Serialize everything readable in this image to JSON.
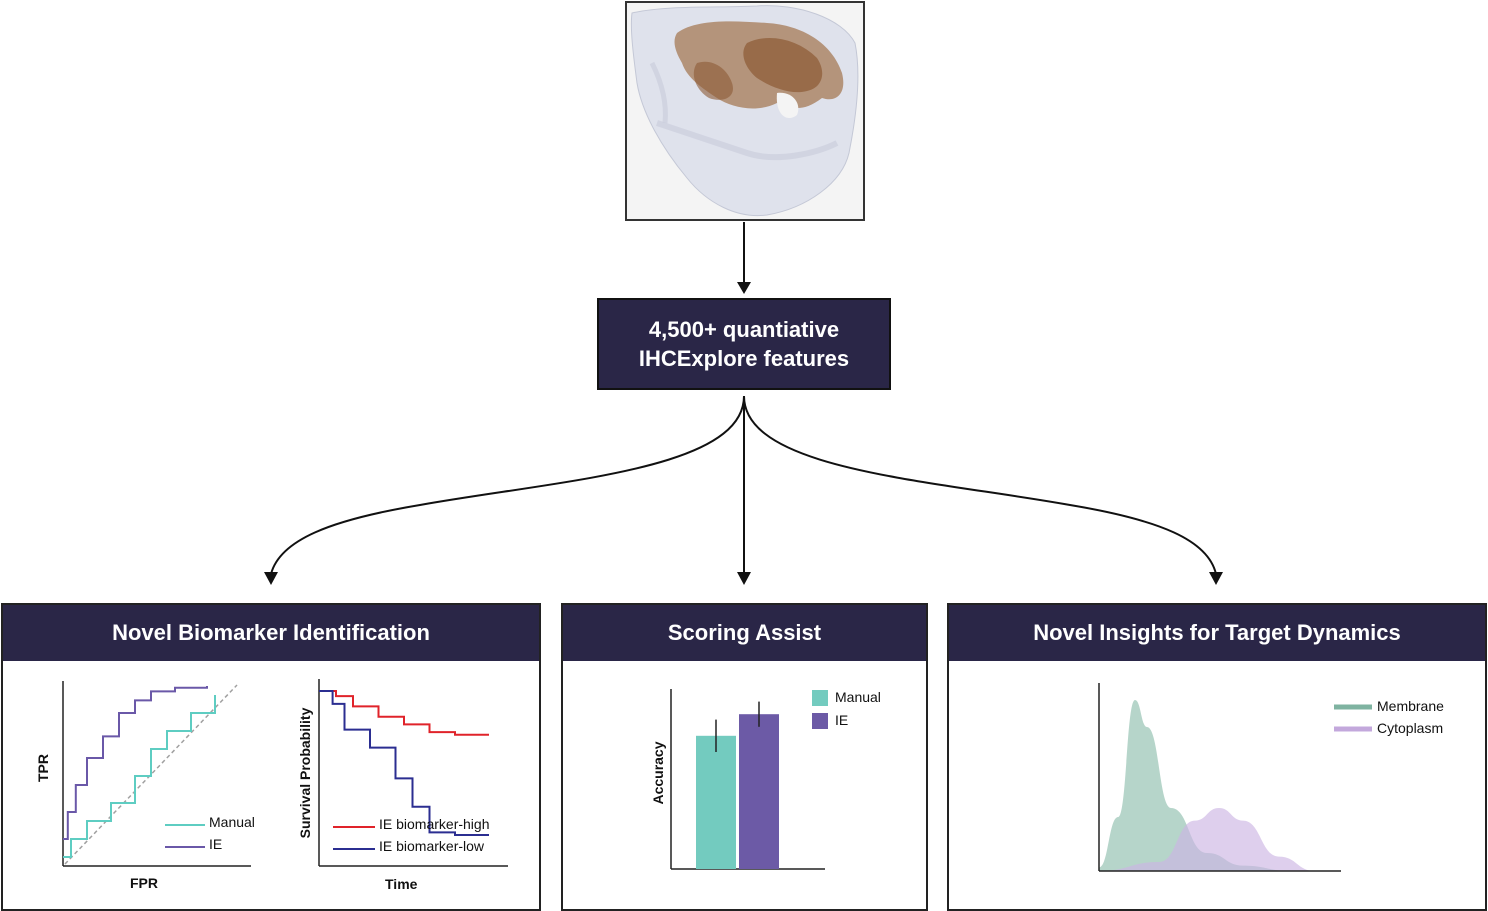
{
  "feature_box": {
    "line1": "4,500+ quantiative",
    "line2": "IHCExplore features"
  },
  "panels": {
    "biomarker": {
      "title": "Novel Biomarker Identification",
      "roc": {
        "ylabel": "TPR",
        "xlabel": "FPR",
        "legend": [
          {
            "name": "Manual",
            "color": "#5ecdc2"
          },
          {
            "name": "IE",
            "color": "#6a58a8"
          }
        ]
      },
      "km": {
        "ylabel": "Survival Probability",
        "xlabel": "Time",
        "legend": [
          {
            "name": "IE biomarker-high",
            "color": "#e0232a"
          },
          {
            "name": "IE biomarker-low",
            "color": "#2b2e91"
          }
        ]
      }
    },
    "scoring": {
      "title": "Scoring Assist",
      "ylabel": "Accuracy",
      "legend": [
        {
          "name": "Manual",
          "color": "#73cbbf"
        },
        {
          "name": "IE",
          "color": "#6c5aa6"
        }
      ]
    },
    "dynamics": {
      "title": "Novel Insights for Target Dynamics",
      "legend": [
        {
          "name": "Membrane",
          "color": "#7fb3a1"
        },
        {
          "name": "Cytoplasm",
          "color": "#c3a8dc"
        }
      ]
    }
  },
  "chart_data": [
    {
      "type": "line",
      "xlabel": "FPR",
      "ylabel": "TPR",
      "series": [
        {
          "name": "Manual",
          "x": [
            0,
            0.05,
            0.15,
            0.3,
            0.45,
            0.55,
            0.65,
            0.8,
            0.95
          ],
          "y": [
            0.05,
            0.15,
            0.25,
            0.35,
            0.5,
            0.65,
            0.75,
            0.85,
            0.95
          ]
        },
        {
          "name": "IE",
          "x": [
            0,
            0.03,
            0.08,
            0.15,
            0.25,
            0.35,
            0.45,
            0.55,
            0.7,
            0.9
          ],
          "y": [
            0.15,
            0.3,
            0.45,
            0.6,
            0.72,
            0.85,
            0.92,
            0.97,
            0.99,
            1.0
          ]
        }
      ]
    },
    {
      "type": "line",
      "xlabel": "Time",
      "ylabel": "Survival Probability",
      "series": [
        {
          "name": "IE biomarker-high",
          "x": [
            0,
            0.1,
            0.2,
            0.35,
            0.5,
            0.65,
            0.8,
            1.0
          ],
          "y": [
            1.0,
            0.98,
            0.94,
            0.9,
            0.87,
            0.84,
            0.83,
            0.83
          ]
        },
        {
          "name": "IE biomarker-low",
          "x": [
            0,
            0.08,
            0.15,
            0.3,
            0.45,
            0.55,
            0.65,
            0.8,
            1.0
          ],
          "y": [
            1.0,
            0.95,
            0.85,
            0.78,
            0.66,
            0.55,
            0.45,
            0.44,
            0.44
          ]
        }
      ]
    },
    {
      "type": "bar",
      "ylabel": "Accuracy",
      "categories": [
        "Manual",
        "IE"
      ],
      "values": [
        0.74,
        0.86
      ],
      "errors": [
        0.09,
        0.07
      ],
      "ylim": [
        0,
        1
      ]
    },
    {
      "type": "area",
      "series": [
        {
          "name": "Membrane",
          "x": [
            0,
            0.08,
            0.15,
            0.2,
            0.3,
            0.45,
            0.6,
            0.8
          ],
          "y": [
            0.02,
            0.3,
            0.95,
            0.8,
            0.35,
            0.1,
            0.03,
            0.0
          ]
        },
        {
          "name": "Cytoplasm",
          "x": [
            0,
            0.25,
            0.4,
            0.5,
            0.6,
            0.75,
            0.9
          ],
          "y": [
            0.0,
            0.05,
            0.28,
            0.35,
            0.28,
            0.08,
            0.0
          ]
        }
      ]
    }
  ]
}
